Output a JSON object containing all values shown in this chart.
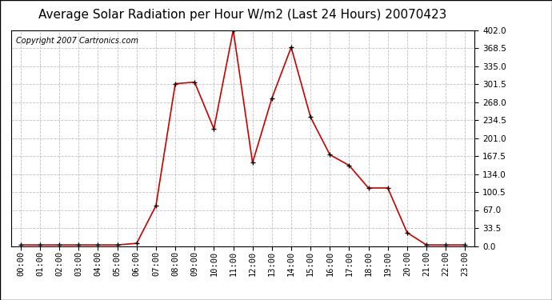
{
  "title": "Average Solar Radiation per Hour W/m2 (Last 24 Hours) 20070423",
  "copyright": "Copyright 2007 Cartronics.com",
  "hours": [
    "00:00",
    "01:00",
    "02:00",
    "03:00",
    "04:00",
    "05:00",
    "06:00",
    "07:00",
    "08:00",
    "09:00",
    "10:00",
    "11:00",
    "12:00",
    "13:00",
    "14:00",
    "15:00",
    "16:00",
    "17:00",
    "18:00",
    "19:00",
    "20:00",
    "21:00",
    "22:00",
    "23:00"
  ],
  "values": [
    2,
    2,
    2,
    2,
    2,
    2,
    5,
    75,
    302,
    305,
    218,
    402,
    155,
    275,
    370,
    240,
    170,
    150,
    108,
    108,
    25,
    2,
    2,
    2
  ],
  "line_color": "#cc0000",
  "marker_color": "#000000",
  "bg_color": "#ffffff",
  "grid_color": "#c0c0c0",
  "ylim_min": 0.0,
  "ylim_max": 402.0,
  "yticks": [
    0.0,
    33.5,
    67.0,
    100.5,
    134.0,
    167.5,
    201.0,
    234.5,
    268.0,
    301.5,
    335.0,
    368.5,
    402.0
  ],
  "title_fontsize": 11,
  "copyright_fontsize": 7,
  "tick_fontsize": 7.5
}
